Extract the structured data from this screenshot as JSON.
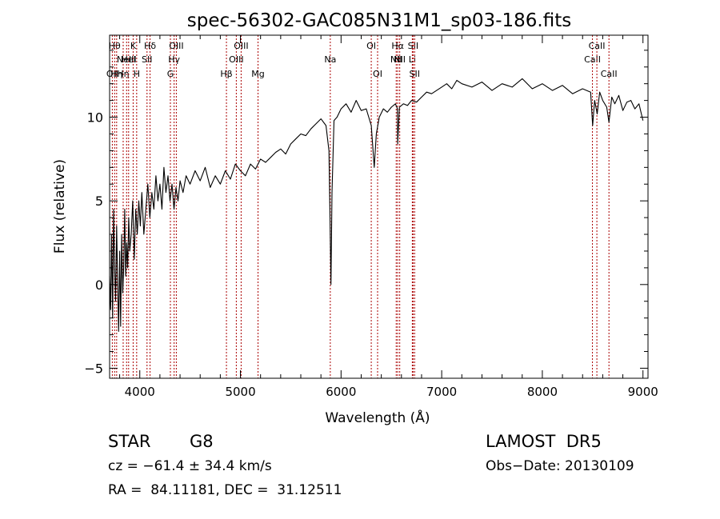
{
  "chart_data": {
    "type": "line",
    "title": "spec-56302-GAC085N31M1_sp03-186.fits",
    "xlabel": "Wavelength (Å)",
    "ylabel": "Flux (relative)",
    "xlim": [
      3700,
      9050
    ],
    "ylim": [
      -5.6,
      14.9
    ],
    "xticks": [
      4000,
      5000,
      6000,
      7000,
      8000,
      9000
    ],
    "xtick_labels": [
      "4000",
      "5000",
      "6000",
      "7000",
      "8000",
      "9000"
    ],
    "yticks": [
      -5,
      0,
      5,
      10
    ],
    "ytick_labels": [
      "−5",
      "0",
      "5",
      "10"
    ],
    "series": [
      {
        "x": [
          3700,
          3710,
          3720,
          3730,
          3740,
          3750,
          3760,
          3770,
          3780,
          3790,
          3800,
          3810,
          3820,
          3830,
          3840,
          3850,
          3860,
          3870,
          3880,
          3890,
          3900,
          3915,
          3930,
          3945,
          3960,
          3975,
          3990,
          4005,
          4020,
          4040,
          4060,
          4080,
          4100,
          4120,
          4140,
          4160,
          4180,
          4200,
          4220,
          4240,
          4260,
          4280,
          4300,
          4320,
          4340,
          4360,
          4380,
          4400,
          4430,
          4460,
          4500,
          4550,
          4600,
          4650,
          4700,
          4750,
          4800,
          4850,
          4900,
          4950,
          5000,
          5050,
          5100,
          5150,
          5200,
          5250,
          5300,
          5350,
          5400,
          5450,
          5500,
          5550,
          5600,
          5650,
          5700,
          5750,
          5800,
          5850,
          5880,
          5890,
          5900,
          5910,
          5930,
          5960,
          6000,
          6050,
          6100,
          6150,
          6200,
          6250,
          6300,
          6330,
          6350,
          6380,
          6420,
          6460,
          6500,
          6540,
          6560,
          6563,
          6580,
          6620,
          6660,
          6700,
          6750,
          6800,
          6850,
          6900,
          6950,
          7000,
          7050,
          7100,
          7150,
          7200,
          7300,
          7400,
          7500,
          7600,
          7700,
          7800,
          7900,
          8000,
          8100,
          8200,
          8300,
          8400,
          8480,
          8500,
          8520,
          8545,
          8570,
          8600,
          8640,
          8662,
          8690,
          8720,
          8760,
          8800,
          8840,
          8880,
          8920,
          8960,
          9000
        ],
        "y": [
          0.5,
          -1.5,
          3.0,
          -2.0,
          4.5,
          1.0,
          -1.0,
          3.5,
          0.0,
          -2.8,
          2.0,
          -2.5,
          3.0,
          -0.5,
          1.0,
          4.5,
          0.5,
          2.5,
          1.0,
          4.0,
          2.0,
          3.0,
          5.0,
          1.5,
          4.5,
          3.0,
          5.0,
          3.5,
          5.5,
          3.0,
          4.5,
          6.0,
          4.0,
          5.5,
          4.5,
          6.5,
          5.0,
          6.0,
          4.5,
          7.0,
          5.5,
          6.5,
          5.0,
          6.0,
          4.5,
          5.8,
          5.0,
          6.2,
          5.5,
          6.5,
          6.0,
          6.8,
          6.2,
          7.0,
          5.8,
          6.5,
          6.0,
          6.8,
          6.3,
          7.2,
          6.8,
          6.5,
          7.2,
          6.9,
          7.5,
          7.3,
          7.6,
          7.9,
          8.1,
          7.8,
          8.4,
          8.7,
          9.0,
          8.9,
          9.3,
          9.6,
          9.9,
          9.5,
          8.0,
          4.0,
          0.0,
          5.5,
          9.8,
          10.0,
          10.5,
          10.8,
          10.3,
          11.0,
          10.4,
          10.5,
          9.5,
          7.0,
          9.0,
          10.0,
          10.5,
          10.3,
          10.6,
          10.8,
          10.5,
          8.4,
          10.6,
          10.8,
          10.7,
          11.0,
          10.9,
          11.2,
          11.5,
          11.4,
          11.6,
          11.8,
          12.0,
          11.7,
          12.2,
          12.0,
          11.8,
          12.1,
          11.6,
          12.0,
          11.8,
          12.3,
          11.7,
          12.0,
          11.6,
          11.9,
          11.4,
          11.7,
          11.5,
          9.5,
          11.0,
          10.2,
          11.5,
          11.0,
          10.6,
          9.7,
          11.2,
          10.8,
          11.3,
          10.4,
          10.9,
          11.0,
          10.5,
          10.8,
          9.8
        ]
      }
    ],
    "line_markers": [
      {
        "wavelength": 3727,
        "label": "OII",
        "row": 2
      },
      {
        "wavelength": 3750,
        "label": "Hθ",
        "row": 0
      },
      {
        "wavelength": 3770,
        "label": "Hη",
        "row": 2
      },
      {
        "wavelength": 3835,
        "label": "Hη",
        "row": 2
      },
      {
        "wavelength": 3869,
        "label": "NeIII",
        "row": 1
      },
      {
        "wavelength": 3889,
        "label": "HeI",
        "row": 1
      },
      {
        "wavelength": 3934,
        "label": "K",
        "row": 0
      },
      {
        "wavelength": 3969,
        "label": "H",
        "row": 2
      },
      {
        "wavelength": 4072,
        "label": "SII",
        "row": 1
      },
      {
        "wavelength": 4102,
        "label": "Hδ",
        "row": 0
      },
      {
        "wavelength": 4304,
        "label": "G",
        "row": 2
      },
      {
        "wavelength": 4341,
        "label": "Hγ",
        "row": 1
      },
      {
        "wavelength": 4363,
        "label": "OIII",
        "row": 0
      },
      {
        "wavelength": 4861,
        "label": "Hβ",
        "row": 2
      },
      {
        "wavelength": 4959,
        "label": "OIII",
        "row": 1
      },
      {
        "wavelength": 5007,
        "label": "OIII",
        "row": 0
      },
      {
        "wavelength": 5175,
        "label": "Mg",
        "row": 2
      },
      {
        "wavelength": 5893,
        "label": "Na",
        "row": 1
      },
      {
        "wavelength": 6300,
        "label": "OI",
        "row": 0
      },
      {
        "wavelength": 6363,
        "label": "OI",
        "row": 2
      },
      {
        "wavelength": 6548,
        "label": "NII",
        "row": 1
      },
      {
        "wavelength": 6563,
        "label": "Hα",
        "row": 0
      },
      {
        "wavelength": 6583,
        "label": "NII",
        "row": 1
      },
      {
        "wavelength": 6708,
        "label": "Li",
        "row": 1
      },
      {
        "wavelength": 6716,
        "label": "SII",
        "row": 0
      },
      {
        "wavelength": 6731,
        "label": "SII",
        "row": 2
      },
      {
        "wavelength": 8498,
        "label": "CaII",
        "row": 1
      },
      {
        "wavelength": 8542,
        "label": "CaII",
        "row": 0
      },
      {
        "wavelength": 8662,
        "label": "CaII",
        "row": 2
      }
    ],
    "marker_color": "#aa0000",
    "line_color": "#000000"
  },
  "info": {
    "object_class": "STAR",
    "subclass": "G8",
    "survey": "LAMOST  DR5",
    "cz": "cz = −61.4 ± 34.4 km/s",
    "obs_date": "Obs−Date: 20130109",
    "coords": "RA =  84.11181, DEC =  31.12511"
  }
}
